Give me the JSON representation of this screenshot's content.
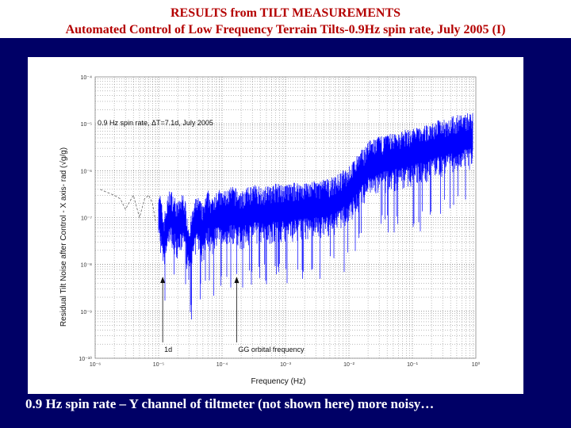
{
  "slide": {
    "title_line1": "RESULTS from TILT MEASUREMENTS",
    "title_line2": "Automated Control of Low Frequency Terrain Tilts-0.9Hz spin rate, July 2005 (I)",
    "caption": "0.9 Hz spin rate – Y channel of tiltmeter (not shown here) more noisy…",
    "colors": {
      "title": "#b40000",
      "body_bg": "#000066",
      "caption": "#ffffff",
      "trace": "#0000ff"
    }
  },
  "chart_data": {
    "type": "line",
    "xlabel": "Frequency (Hz)",
    "ylabel": "Residual Tilt Noise after Control - X axis- rad (√g/g)",
    "x_scale": "log",
    "y_scale": "log",
    "xlim": [
      1e-06,
      1
    ],
    "ylim": [
      1e-10,
      0.0001
    ],
    "x_ticks": [
      {
        "value": 1e-06,
        "label": "10⁻⁶"
      },
      {
        "value": 1e-05,
        "label": "10⁻⁵"
      },
      {
        "value": 0.0001,
        "label": "10⁻⁴"
      },
      {
        "value": 0.001,
        "label": "10⁻³"
      },
      {
        "value": 0.01,
        "label": "10⁻²"
      },
      {
        "value": 0.1,
        "label": "10⁻¹"
      },
      {
        "value": 1,
        "label": "10⁰"
      }
    ],
    "y_ticks": [
      {
        "value": 0.0001,
        "label": "10⁻⁴"
      },
      {
        "value": 1e-05,
        "label": "10⁻⁵"
      },
      {
        "value": 1e-06,
        "label": "10⁻⁶"
      },
      {
        "value": 1e-07,
        "label": "10⁻⁷"
      },
      {
        "value": 1e-08,
        "label": "10⁻⁸"
      },
      {
        "value": 1e-09,
        "label": "10⁻⁹"
      },
      {
        "value": 1e-10,
        "label": "10⁻¹⁰"
      }
    ],
    "grid": true,
    "annotation_text": "0.9 Hz spin rate, ΔT=7.1d, July 2005",
    "markers": [
      {
        "label": "1d",
        "x": 1.16e-05
      },
      {
        "label": "GG orbital frequency",
        "x": 0.00017
      }
    ],
    "series": [
      {
        "color": "#0000ff",
        "x": [
          1.2e-06,
          1.5e-06,
          2e-06,
          2.5e-06,
          3e-06,
          4e-06,
          5e-06,
          6e-06,
          7e-06,
          8e-06,
          9e-06,
          1e-05,
          1.2e-05,
          1.5e-05,
          2e-05,
          2.5e-05,
          3e-05,
          4e-05,
          5e-05,
          6e-05,
          7e-05,
          8e-05,
          0.0001,
          0.00015,
          0.0002,
          0.0003,
          0.0005,
          0.0007,
          0.001,
          0.0015,
          0.002,
          0.003,
          0.005,
          0.007,
          0.01,
          0.015,
          0.02,
          0.03,
          0.05,
          0.07,
          0.1,
          0.15,
          0.2,
          0.3,
          0.5,
          0.7,
          0.9
        ],
        "y": [
          4e-07,
          3.5e-07,
          3e-07,
          2.5e-07,
          1.5e-07,
          3e-07,
          1e-07,
          2.5e-07,
          3e-07,
          2e-07,
          8e-08,
          1.5e-07,
          3e-08,
          1.2e-07,
          6e-08,
          1e-07,
          2e-08,
          9e-08,
          5e-08,
          1.1e-07,
          7e-08,
          1.2e-07,
          1e-07,
          1.3e-07,
          1e-07,
          1.4e-07,
          1.3e-07,
          1.5e-07,
          1.4e-07,
          1.6e-07,
          1.6e-07,
          1.7e-07,
          1.9e-07,
          2.4e-07,
          3.5e-07,
          7e-07,
          1.2e-06,
          1.5e-06,
          1.8e-06,
          2e-06,
          2.3e-06,
          2.5e-06,
          3e-06,
          3.6e-06,
          4.2e-06,
          4.8e-06,
          5e-06
        ]
      }
    ]
  }
}
